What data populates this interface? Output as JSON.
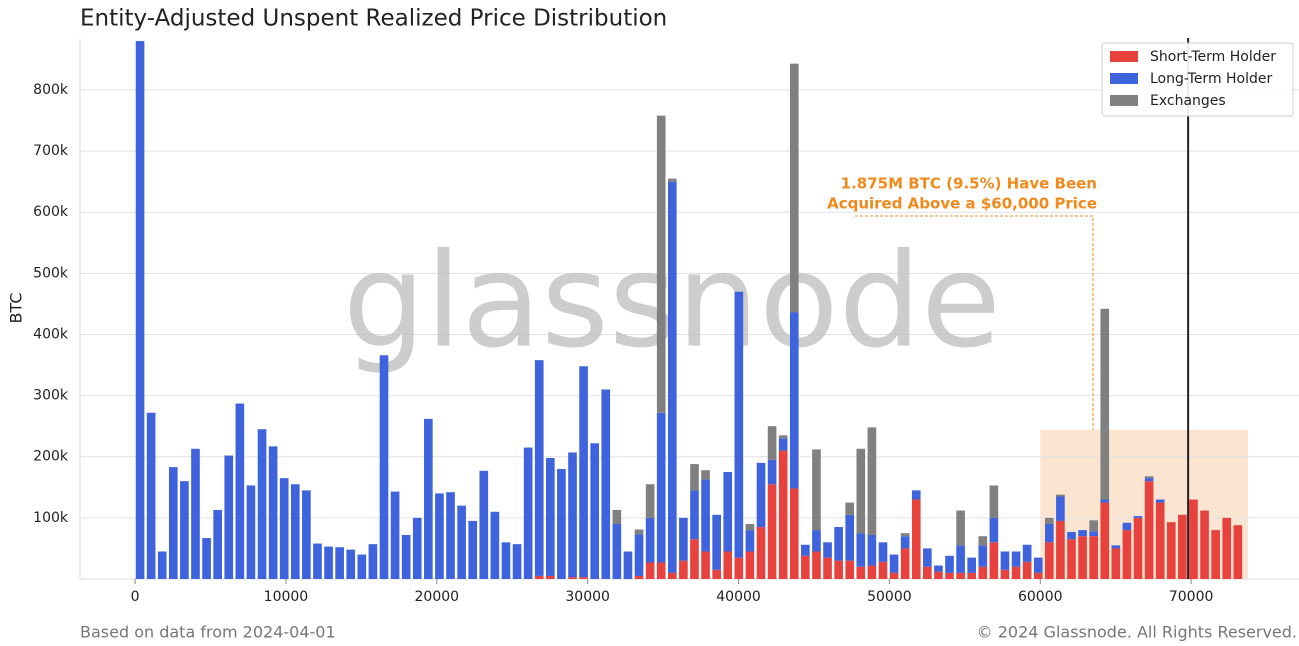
{
  "chart_data": {
    "type": "stacked_bar",
    "title": "Entity-Adjusted Unspent Realized Price Distribution",
    "ylabel": "BTC",
    "source": "Based on data from 2024-04-01",
    "copyright": "© 2024 Glassnode. All Rights Reserved.",
    "watermark": "glassnode",
    "annotation": [
      "1.875M BTC (9.5%) Have Been",
      "Acquired Above a $60,000 Price"
    ],
    "annotation_color": "#f08a1c",
    "highlight_region": {
      "x": [
        60000,
        73780
      ],
      "y": 244000,
      "color": "#fbe0c8"
    },
    "reference_line": 69800,
    "legend": "upper right",
    "grid": true,
    "xlim": [
      -3650,
      77150
    ],
    "ylim": [
      0,
      885000
    ],
    "xticks": [
      0,
      10000,
      20000,
      30000,
      40000,
      50000,
      60000,
      70000
    ],
    "yticks": [
      {
        "value": 100000,
        "label": "100k"
      },
      {
        "value": 200000,
        "label": "200k"
      },
      {
        "value": 300000,
        "label": "300k"
      },
      {
        "value": 400000,
        "label": "400k"
      },
      {
        "value": 500000,
        "label": "500k"
      },
      {
        "value": 600000,
        "label": "600k"
      },
      {
        "value": 700000,
        "label": "700k"
      },
      {
        "value": 800000,
        "label": "800k"
      }
    ],
    "bin_width": 735,
    "x": [
      330,
      1065,
      1800,
      2535,
      3270,
      4005,
      4740,
      5475,
      6210,
      6945,
      7680,
      8415,
      9150,
      9885,
      10620,
      11355,
      12090,
      12825,
      13560,
      14295,
      15030,
      15765,
      16500,
      17235,
      17970,
      18705,
      19440,
      20175,
      20910,
      21645,
      22380,
      23115,
      23850,
      24585,
      25320,
      26055,
      26790,
      27525,
      28260,
      28995,
      29730,
      30465,
      31200,
      31935,
      32670,
      33405,
      34140,
      34875,
      35610,
      36345,
      37080,
      37815,
      38550,
      39285,
      40020,
      40755,
      41490,
      42225,
      42960,
      43695,
      44430,
      45165,
      45900,
      46635,
      47370,
      48105,
      48840,
      49575,
      50310,
      51045,
      51780,
      52515,
      53250,
      53985,
      54720,
      55455,
      56190,
      56925,
      57660,
      58395,
      59130,
      59865,
      60600,
      61335,
      62070,
      62805,
      63540,
      64275,
      65010,
      65745,
      66480,
      67215,
      67950,
      68685,
      69420,
      70155,
      70890,
      71625,
      72360,
      73095
    ],
    "series": [
      {
        "name": "Short-Term Holder",
        "color": "#e8423f",
        "values": [
          0,
          0,
          0,
          0,
          0,
          0,
          0,
          0,
          0,
          0,
          0,
          0,
          0,
          0,
          0,
          0,
          0,
          0,
          0,
          0,
          0,
          0,
          0,
          0,
          0,
          0,
          0,
          0,
          0,
          0,
          0,
          0,
          0,
          0,
          0,
          0,
          5000,
          5000,
          0,
          3000,
          3000,
          0,
          0,
          0,
          0,
          5000,
          27000,
          27000,
          10000,
          30000,
          65000,
          45000,
          15000,
          45000,
          35000,
          45000,
          85000,
          155000,
          210000,
          148000,
          38000,
          45000,
          35000,
          30000,
          30000,
          20000,
          22000,
          28000,
          10000,
          50000,
          130000,
          20000,
          12000,
          10000,
          10000,
          10000,
          20000,
          60000,
          15000,
          20000,
          28000,
          10000,
          60000,
          95000,
          65000,
          70000,
          70000,
          125000,
          50000,
          80000,
          100000,
          160000,
          125000,
          93000,
          105000,
          130000,
          112000,
          80000,
          100000,
          88000
        ]
      },
      {
        "name": "Long-Term Holder",
        "color": "#3e63dd",
        "values": [
          880000,
          272000,
          45000,
          183000,
          160000,
          213000,
          67000,
          113000,
          202000,
          287000,
          153000,
          245000,
          217000,
          165000,
          155000,
          145000,
          58000,
          53000,
          52000,
          48000,
          40000,
          57000,
          366000,
          143000,
          72000,
          100000,
          262000,
          140000,
          142000,
          120000,
          95000,
          177000,
          110000,
          60000,
          57000,
          215000,
          353000,
          193000,
          180000,
          204000,
          345000,
          222000,
          310000,
          90000,
          45000,
          68000,
          73000,
          245000,
          640000,
          70000,
          80000,
          118000,
          90000,
          130000,
          435000,
          35000,
          105000,
          40000,
          20000,
          288000,
          18000,
          35000,
          25000,
          55000,
          75000,
          55000,
          50000,
          32000,
          30000,
          20000,
          15000,
          30000,
          10000,
          28000,
          45000,
          25000,
          35000,
          40000,
          30000,
          25000,
          28000,
          25000,
          30000,
          40000,
          12000,
          10000,
          8000,
          5000,
          5000,
          12000,
          3000,
          5000,
          5000,
          0,
          0,
          0,
          0,
          0,
          0,
          0
        ]
      },
      {
        "name": "Exchanges",
        "color": "#808080",
        "values": [
          0,
          0,
          0,
          0,
          0,
          0,
          0,
          0,
          0,
          0,
          0,
          0,
          0,
          0,
          0,
          0,
          0,
          0,
          0,
          0,
          0,
          0,
          0,
          0,
          0,
          0,
          0,
          0,
          0,
          0,
          0,
          0,
          0,
          0,
          0,
          0,
          0,
          0,
          0,
          0,
          0,
          0,
          0,
          23000,
          0,
          8000,
          55000,
          486000,
          5000,
          0,
          43000,
          15000,
          0,
          0,
          0,
          10000,
          0,
          55000,
          5000,
          407000,
          0,
          132000,
          0,
          0,
          20000,
          138000,
          176000,
          0,
          0,
          5000,
          0,
          0,
          0,
          0,
          57000,
          0,
          15000,
          53000,
          0,
          0,
          0,
          0,
          10000,
          3000,
          0,
          0,
          18000,
          312000,
          0,
          0,
          0,
          3000,
          0,
          0,
          0,
          0,
          0,
          0,
          0,
          0
        ]
      }
    ]
  }
}
